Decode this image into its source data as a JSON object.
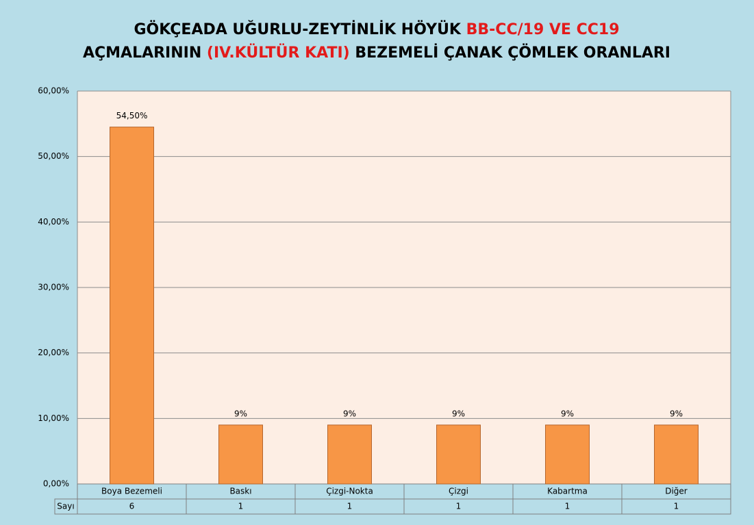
{
  "chart_data": {
    "type": "bar",
    "title_lines": [
      [
        {
          "text": "GÖKÇEADA UĞURLU-ZEYTİNLİK HÖYÜK ",
          "color": "#000000"
        },
        {
          "text": "BB-CC/19 VE CC19",
          "color": "#e31b1b"
        }
      ],
      [
        {
          "text": "AÇMALARININ ",
          "color": "#000000"
        },
        {
          "text": "(IV.KÜLTÜR KATI)",
          "color": "#e31b1b"
        },
        {
          "text": " BEZEMELİ ÇANAK ÇÖMLEK ORANLARI",
          "color": "#000000"
        }
      ]
    ],
    "categories": [
      "Boya Bezemeli",
      "Baskı",
      "Çizgi-Nokta",
      "Çizgi",
      "Kabartma",
      "Diğer"
    ],
    "values": [
      54.5,
      9,
      9,
      9,
      9,
      9
    ],
    "value_labels": [
      "54,50%",
      "9%",
      "9%",
      "9%",
      "9%",
      "9%"
    ],
    "color": "#f79646",
    "ylim": [
      0,
      60
    ],
    "yticks": [
      {
        "value": 0,
        "label": "0,00%"
      },
      {
        "value": 10,
        "label": "10,00%"
      },
      {
        "value": 20,
        "label": "20,00%"
      },
      {
        "value": 30,
        "label": "30,00%"
      },
      {
        "value": 40,
        "label": "40,00%"
      },
      {
        "value": 50,
        "label": "50,00%"
      },
      {
        "value": 60,
        "label": "60,00%"
      }
    ],
    "grid": true,
    "table": {
      "label": "Sayı",
      "values": [
        6,
        1,
        1,
        1,
        1,
        1
      ]
    }
  }
}
